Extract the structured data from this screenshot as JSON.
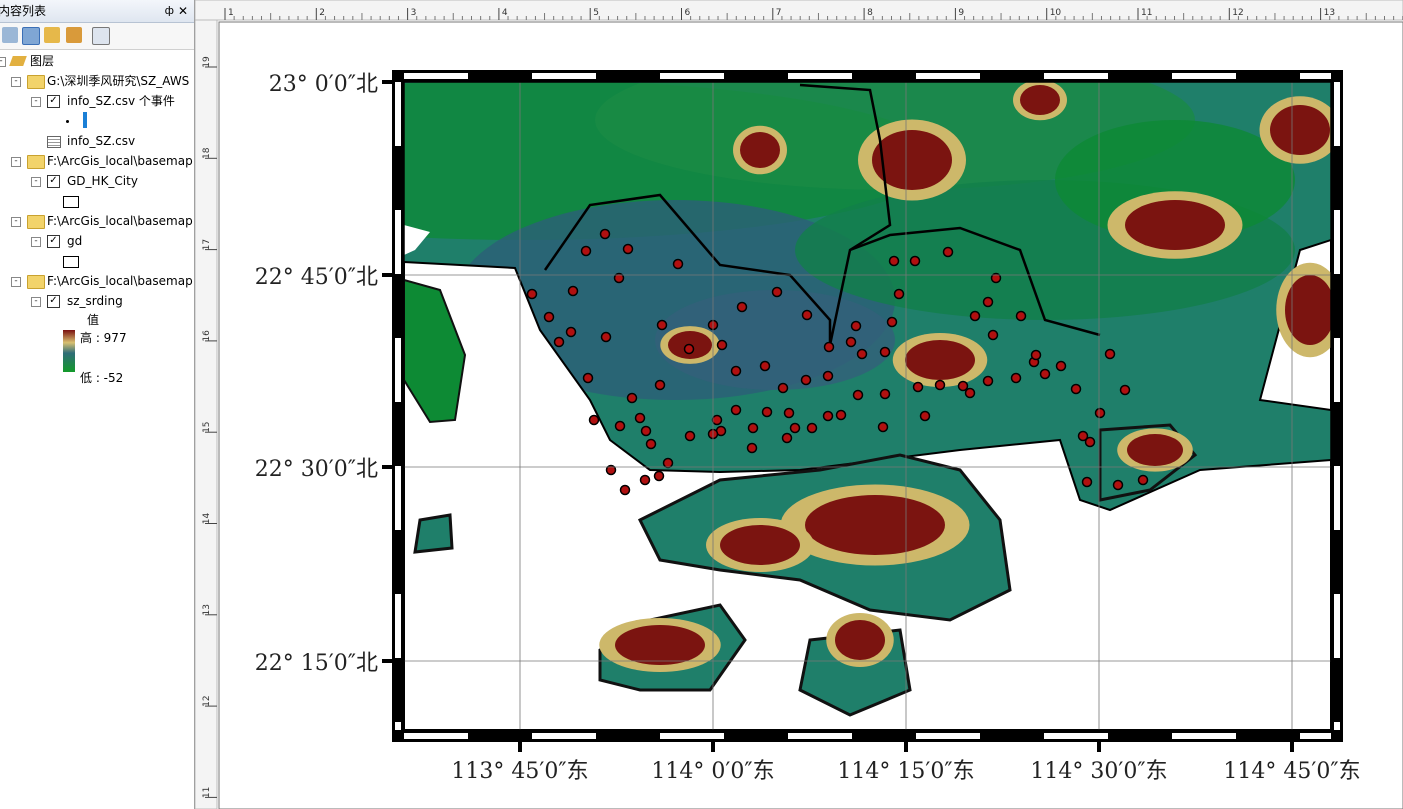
{
  "panel": {
    "title": "内容列表",
    "tree": [
      "图层",
      "G:\\深圳季风研究\\SZ_AWS",
      "info_SZ.csv 个事件",
      "info_SZ.csv",
      "F:\\ArcGis_local\\basemap",
      "GD_HK_City",
      "F:\\ArcGis_local\\basemap",
      "gd",
      "F:\\ArcGis_local\\basemap",
      "sz_srding",
      "值",
      "高 : 977",
      "低 : -52"
    ]
  },
  "map": {
    "lat_labels": [
      "23° 0′0″北",
      "22° 45′0″北",
      "22° 30′0″北",
      "22° 15′0″北"
    ],
    "lon_labels": [
      "113° 45′0″东",
      "114° 0′0″东",
      "114° 15′0″东",
      "114° 30′0″东",
      "114° 45′0″东"
    ]
  },
  "rulers": {
    "top": [
      "1",
      "2",
      "3",
      "4",
      "5",
      "6",
      "7",
      "8",
      "9",
      "10",
      "11",
      "12",
      "13"
    ],
    "left": [
      "19",
      "18",
      "17",
      "16",
      "15",
      "14",
      "13",
      "12",
      "11"
    ]
  }
}
